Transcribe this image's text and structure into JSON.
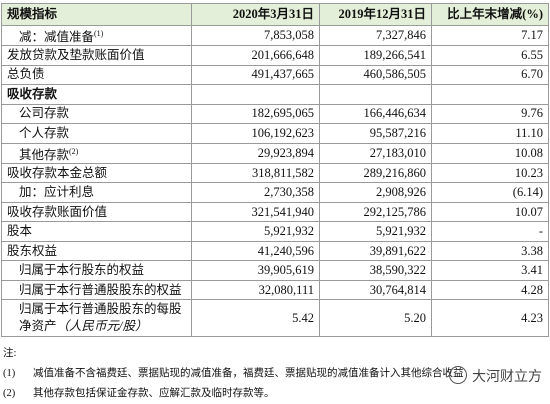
{
  "table": {
    "header": [
      "规模指标",
      "2020年3月31日",
      "2019年12月31日",
      "比上年末增减(%)"
    ],
    "rows": [
      [
        {
          "label": "减：减值准备",
          "note": "(1)"
        },
        "7,853,058",
        "7,327,846",
        "7.17"
      ],
      [
        {
          "label": "发放贷款及垫款账面价值"
        },
        "201,666,648",
        "189,266,541",
        "6.55"
      ],
      [
        {
          "label": "总负债"
        },
        "491,437,665",
        "460,586,505",
        "6.70"
      ],
      [
        {
          "label": "吸收存款"
        },
        "",
        "",
        ""
      ],
      [
        {
          "label": "公司存款"
        },
        "182,695,065",
        "166,446,634",
        "9.76"
      ],
      [
        {
          "label": "个人存款"
        },
        "106,192,623",
        "95,587,216",
        "11.10"
      ],
      [
        {
          "label": "其他存款",
          "note": "(2)"
        },
        "29,923,894",
        "27,183,010",
        "10.08"
      ],
      [
        {
          "label": "吸收存款本金总额"
        },
        "318,811,582",
        "289,216,860",
        "10.23"
      ],
      [
        {
          "label": "加：应计利息"
        },
        "2,730,358",
        "2,908,926",
        "(6.14)"
      ],
      [
        {
          "label": "吸收存款账面价值"
        },
        "321,541,940",
        "292,125,786",
        "10.07"
      ],
      [
        {
          "label": "股本"
        },
        "5,921,932",
        "5,921,932",
        "-"
      ],
      [
        {
          "label": "股东权益"
        },
        "41,240,596",
        "39,891,622",
        "3.38"
      ],
      [
        {
          "label": "归属于本行股东的权益"
        },
        "39,905,619",
        "38,590,322",
        "3.41"
      ],
      [
        {
          "label": "归属于本行普通股股东的权益"
        },
        "32,080,111",
        "30,764,814",
        "4.28"
      ],
      [
        {
          "label": "归属于本行普通股股东的每股净资产",
          "note": "（人民币元/股）"
        },
        "5.42",
        "5.20",
        "4.23"
      ]
    ]
  },
  "notes": {
    "title": "注:",
    "items": [
      {
        "num": "(1)",
        "text": "减值准备不含福费廷、票据贴现的减值准备，福费廷、票据贴现的减值准备计入其他综合收益"
      },
      {
        "num": "(2)",
        "text": "其他存款包括保证金存款、应解汇款及临时存款等。"
      }
    ]
  },
  "watermark": "大河财立方"
}
